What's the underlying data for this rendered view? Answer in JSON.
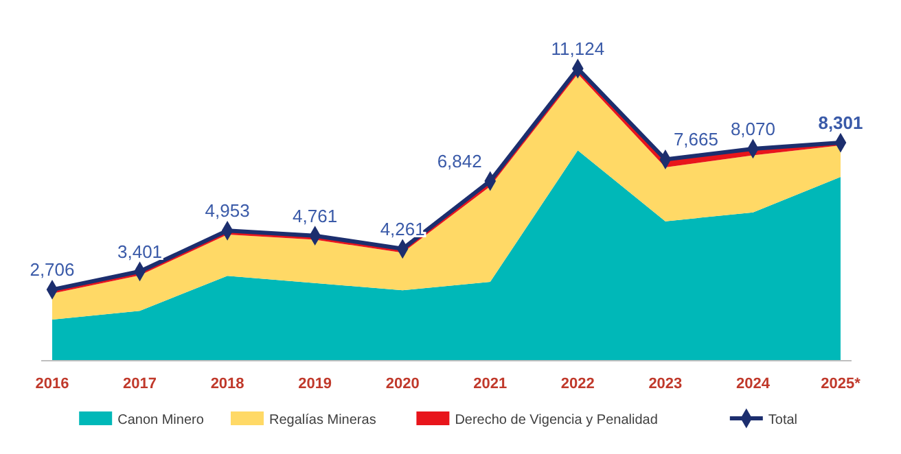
{
  "chart_data": {
    "type": "area",
    "stacked": true,
    "categories": [
      "2016",
      "2017",
      "2018",
      "2019",
      "2020",
      "2021",
      "2022",
      "2023",
      "2024",
      "2025*"
    ],
    "series": [
      {
        "name": "Canon Minero",
        "color": "#00b8b8",
        "values": [
          1570,
          1900,
          3230,
          2960,
          2680,
          3000,
          8010,
          5310,
          5650,
          7000
        ]
      },
      {
        "name": "Regalías Mineras",
        "color": "#ffd966",
        "values": [
          986,
          1351,
          1573,
          1651,
          1431,
          3642,
          2914,
          2055,
          2170,
          1201
        ]
      },
      {
        "name": "Derecho de Vigencia y Penalidad",
        "color": "#e8151b",
        "values": [
          150,
          150,
          150,
          150,
          150,
          200,
          200,
          300,
          250,
          100
        ]
      },
      {
        "name": "Total",
        "type": "line",
        "color": "#1c2e6e",
        "marker": "diamond",
        "values": [
          2706,
          3401,
          4953,
          4761,
          4261,
          6842,
          11124,
          7665,
          8070,
          8301
        ],
        "value_labels": [
          "2,706",
          "3,401",
          "4,953",
          "4,761",
          "4,261",
          "6,842",
          "11,124",
          "7,665",
          "8,070",
          "8,301"
        ]
      }
    ],
    "legend": "bottom",
    "tick_labels": "x"
  }
}
